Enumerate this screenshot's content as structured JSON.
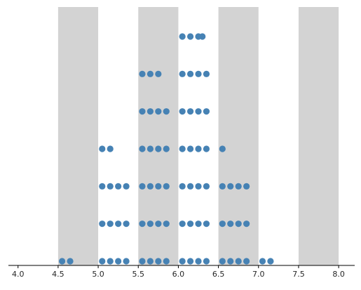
{
  "chart_data": {
    "type": "scatter",
    "title": "",
    "xlabel": "",
    "ylabel": "",
    "xlim": [
      3.88,
      8.2
    ],
    "ylim": [
      0,
      6.7
    ],
    "x_ticks": [
      "4.0",
      "4.5",
      "5.0",
      "5.5",
      "6.0",
      "6.5",
      "7.0",
      "7.5",
      "8.0"
    ],
    "x_tick_values": [
      4.0,
      4.5,
      5.0,
      5.5,
      6.0,
      6.5,
      7.0,
      7.5,
      8.0
    ],
    "grid": false,
    "y_axis_visible": false,
    "shaded_bands": [
      [
        4.5,
        5.0
      ],
      [
        5.5,
        6.0
      ],
      [
        6.5,
        7.0
      ],
      [
        7.5,
        8.0
      ]
    ],
    "band_color": "#d3d3d3",
    "marker_color": "#4682b4",
    "axis_color": "#000000",
    "series": [
      {
        "points": [
          [
            4.55,
            0
          ],
          [
            4.65,
            0
          ],
          [
            5.05,
            0
          ],
          [
            5.15,
            0
          ],
          [
            5.25,
            0
          ],
          [
            5.35,
            0
          ],
          [
            5.55,
            0
          ],
          [
            5.65,
            0
          ],
          [
            5.75,
            0
          ],
          [
            5.85,
            0
          ],
          [
            6.05,
            0
          ],
          [
            6.15,
            0
          ],
          [
            6.25,
            0
          ],
          [
            6.35,
            0
          ],
          [
            6.55,
            0
          ],
          [
            6.65,
            0
          ],
          [
            6.75,
            0
          ],
          [
            6.85,
            0
          ],
          [
            7.05,
            0
          ],
          [
            7.15,
            0
          ],
          [
            5.05,
            1
          ],
          [
            5.15,
            1
          ],
          [
            5.25,
            1
          ],
          [
            5.35,
            1
          ],
          [
            5.55,
            1
          ],
          [
            5.65,
            1
          ],
          [
            5.75,
            1
          ],
          [
            5.85,
            1
          ],
          [
            6.05,
            1
          ],
          [
            6.15,
            1
          ],
          [
            6.25,
            1
          ],
          [
            6.35,
            1
          ],
          [
            6.55,
            1
          ],
          [
            6.65,
            1
          ],
          [
            6.75,
            1
          ],
          [
            6.85,
            1
          ],
          [
            5.05,
            2
          ],
          [
            5.15,
            2
          ],
          [
            5.25,
            2
          ],
          [
            5.35,
            2
          ],
          [
            5.55,
            2
          ],
          [
            5.65,
            2
          ],
          [
            5.75,
            2
          ],
          [
            5.85,
            2
          ],
          [
            6.05,
            2
          ],
          [
            6.15,
            2
          ],
          [
            6.25,
            2
          ],
          [
            6.35,
            2
          ],
          [
            6.55,
            2
          ],
          [
            6.65,
            2
          ],
          [
            6.75,
            2
          ],
          [
            6.85,
            2
          ],
          [
            5.05,
            3
          ],
          [
            5.15,
            3
          ],
          [
            5.55,
            3
          ],
          [
            5.65,
            3
          ],
          [
            5.75,
            3
          ],
          [
            5.85,
            3
          ],
          [
            6.05,
            3
          ],
          [
            6.15,
            3
          ],
          [
            6.25,
            3
          ],
          [
            6.35,
            3
          ],
          [
            6.55,
            3
          ],
          [
            5.55,
            4
          ],
          [
            5.65,
            4
          ],
          [
            5.75,
            4
          ],
          [
            5.85,
            4
          ],
          [
            6.05,
            4
          ],
          [
            6.15,
            4
          ],
          [
            6.25,
            4
          ],
          [
            6.35,
            4
          ],
          [
            5.55,
            5
          ],
          [
            5.65,
            5
          ],
          [
            5.75,
            5
          ],
          [
            6.05,
            5
          ],
          [
            6.15,
            5
          ],
          [
            6.25,
            5
          ],
          [
            6.35,
            5
          ],
          [
            6.05,
            6
          ],
          [
            6.15,
            6
          ],
          [
            6.25,
            6
          ],
          [
            6.3,
            6
          ]
        ]
      }
    ]
  }
}
